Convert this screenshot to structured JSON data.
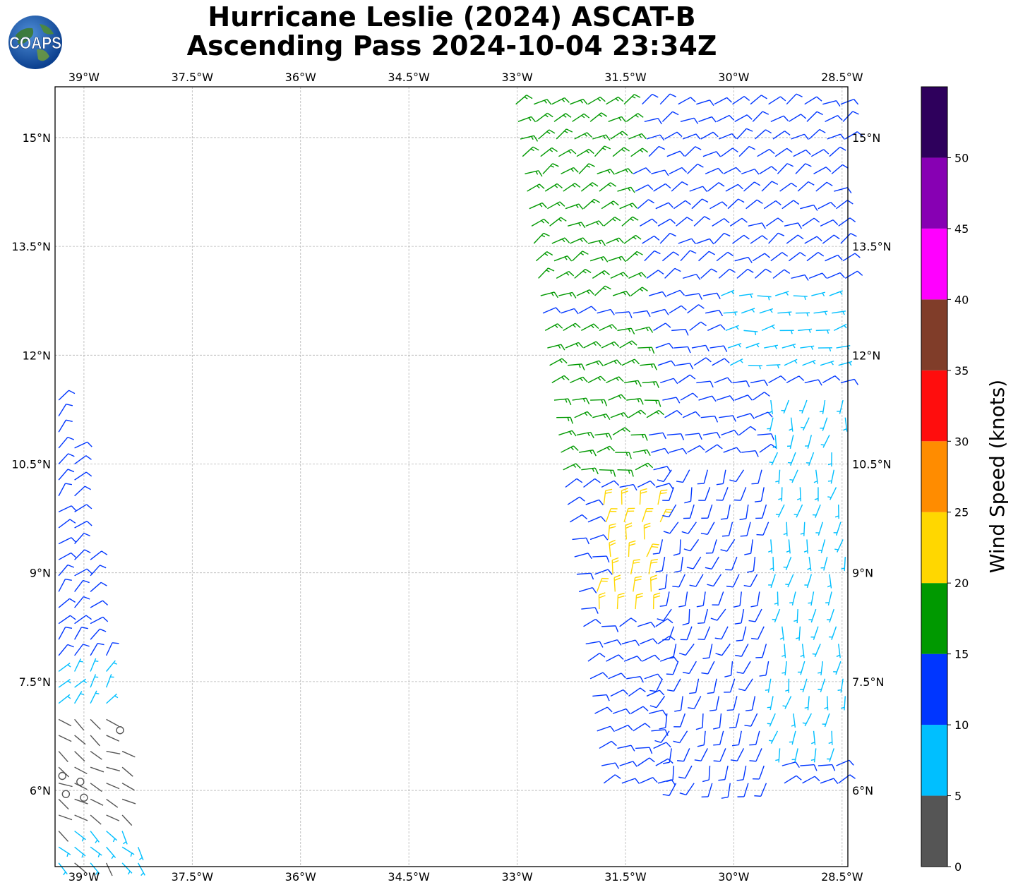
{
  "title": {
    "line1": "Hurricane Leslie (2024) ASCAT-B",
    "line2": "Ascending Pass 2024-10-04 23:34Z"
  },
  "logo": {
    "text": "COAPS",
    "icon": "globe-logo"
  },
  "axes": {
    "lon_ticks": [
      "39°W",
      "37.5°W",
      "36°W",
      "34.5°W",
      "33°W",
      "31.5°W",
      "30°W",
      "28.5°W"
    ],
    "lat_ticks": [
      "15°N",
      "13.5°N",
      "12°N",
      "10.5°N",
      "9°N",
      "7.5°N",
      "6°N"
    ],
    "lon_values": [
      -39,
      -37.5,
      -36,
      -34.5,
      -33,
      -31.5,
      -30,
      -28.5
    ],
    "lat_values": [
      15,
      13.5,
      12,
      10.5,
      9,
      7.5,
      6
    ],
    "lon_range": [
      -39.4,
      -28.42
    ],
    "lat_range": [
      4.95,
      15.7
    ],
    "grid": true
  },
  "colorbar": {
    "title": "Wind Speed (knots)",
    "ticks": [
      "0",
      "5",
      "10",
      "15",
      "20",
      "25",
      "30",
      "35",
      "40",
      "45",
      "50"
    ],
    "bins": [
      {
        "min": 0,
        "max": 5,
        "color": "#555555"
      },
      {
        "min": 5,
        "max": 10,
        "color": "#00bfff"
      },
      {
        "min": 10,
        "max": 15,
        "color": "#0036ff"
      },
      {
        "min": 15,
        "max": 20,
        "color": "#009900"
      },
      {
        "min": 20,
        "max": 25,
        "color": "#ffd700"
      },
      {
        "min": 25,
        "max": 30,
        "color": "#ff8c00"
      },
      {
        "min": 30,
        "max": 35,
        "color": "#ff0d0d"
      },
      {
        "min": 35,
        "max": 40,
        "color": "#803d29"
      },
      {
        "min": 40,
        "max": 45,
        "color": "#ff00ff"
      },
      {
        "min": 45,
        "max": 50,
        "color": "#8700b3"
      },
      {
        "min": 50,
        "max": 55,
        "color": "#2e005c"
      }
    ]
  },
  "chart_data": {
    "type": "scatter",
    "description_of_marks": "wind barbs",
    "swaths": [
      {
        "name": "",
        "lon_range": [
          -39.4,
          -38.2
        ],
        "lat_range": [
          5.0,
          11.5
        ],
        "zones": [
          {
            "lat_min": 7.8,
            "lat_max": 11.5,
            "speed": 12,
            "dir_from": 45
          },
          {
            "lat_min": 7.0,
            "lat_max": 7.8,
            "speed": 7,
            "dir_from": 40
          },
          {
            "lat_min": 5.6,
            "lat_max": 7.0,
            "speed": 3,
            "dir_from": 120
          },
          {
            "lat_min": 5.0,
            "lat_max": 5.6,
            "speed": 6,
            "dir_from": 140
          }
        ],
        "calm_points": [
          [
            -39.3,
            6.2
          ],
          [
            -39.05,
            6.12
          ],
          [
            -39.25,
            5.95
          ],
          [
            -39.0,
            5.9
          ],
          [
            -38.5,
            6.83
          ]
        ]
      },
      {
        "name": "",
        "lon_range": [
          -33.2,
          -28.45
        ],
        "lat_range": [
          6.1,
          15.7
        ],
        "zones": [
          {
            "lat_min": 12.8,
            "lat_max": 15.7,
            "lon_min": -33.2,
            "lon_max": -31.4,
            "speed": 17,
            "dir_from": 60
          },
          {
            "lat_min": 12.9,
            "lat_max": 15.7,
            "lon_min": -31.4,
            "lon_max": -28.45,
            "speed": 12,
            "dir_from": 60
          },
          {
            "lat_min": 11.8,
            "lat_max": 13.6,
            "lon_min": -30.2,
            "lon_max": -28.45,
            "speed": 8,
            "dir_from": 80
          },
          {
            "lat_min": 10.2,
            "lat_max": 12.5,
            "lon_min": -32.7,
            "lon_max": -31.2,
            "speed": 17,
            "dir_from": 75
          },
          {
            "lat_min": 8.5,
            "lat_max": 10.0,
            "lon_min": -31.9,
            "lon_max": -31.0,
            "speed": 22,
            "dir_from": 10
          },
          {
            "lat_min": 6.1,
            "lat_max": 10.5,
            "lon_min": -31.0,
            "lon_max": -29.5,
            "speed": 12,
            "dir_from": 200
          },
          {
            "lat_min": 6.5,
            "lat_max": 11.5,
            "lon_min": -29.5,
            "lon_max": -28.45,
            "speed": 8,
            "dir_from": 190
          }
        ]
      }
    ]
  }
}
